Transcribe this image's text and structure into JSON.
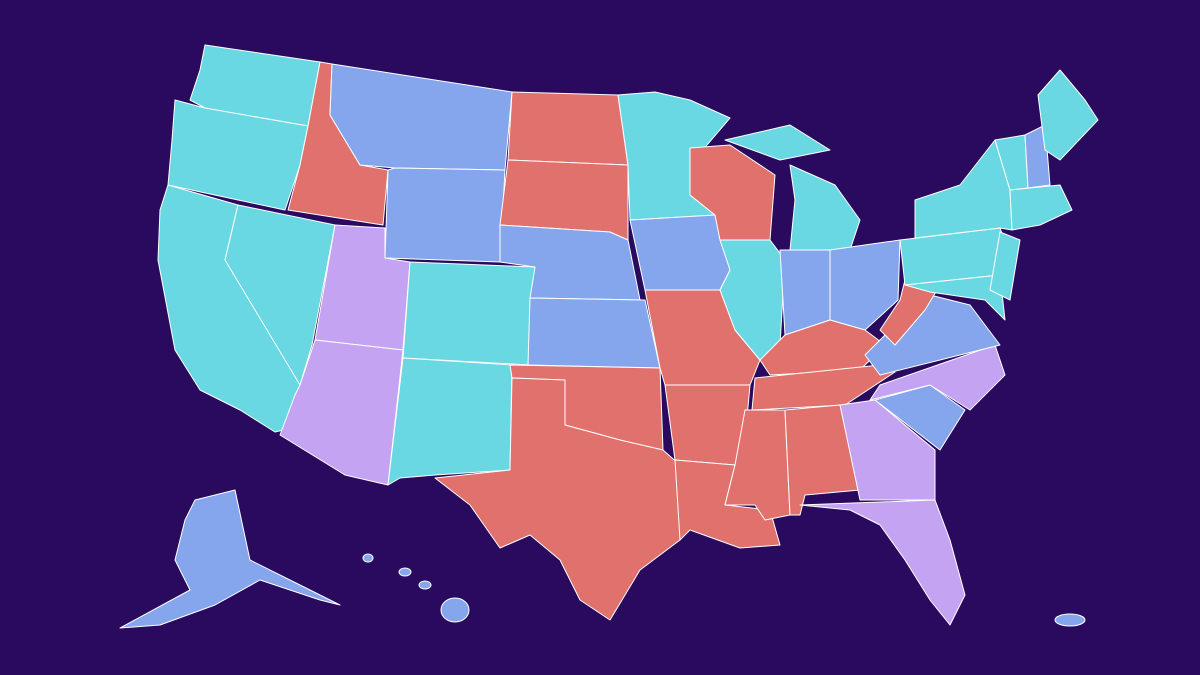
{
  "map": {
    "background": "#2a0a5e",
    "border": "#ffffff",
    "colors": [
      "#6ad8e2",
      "#e0716c",
      "#85a6ec",
      "#c4a3f2"
    ]
  }
}
